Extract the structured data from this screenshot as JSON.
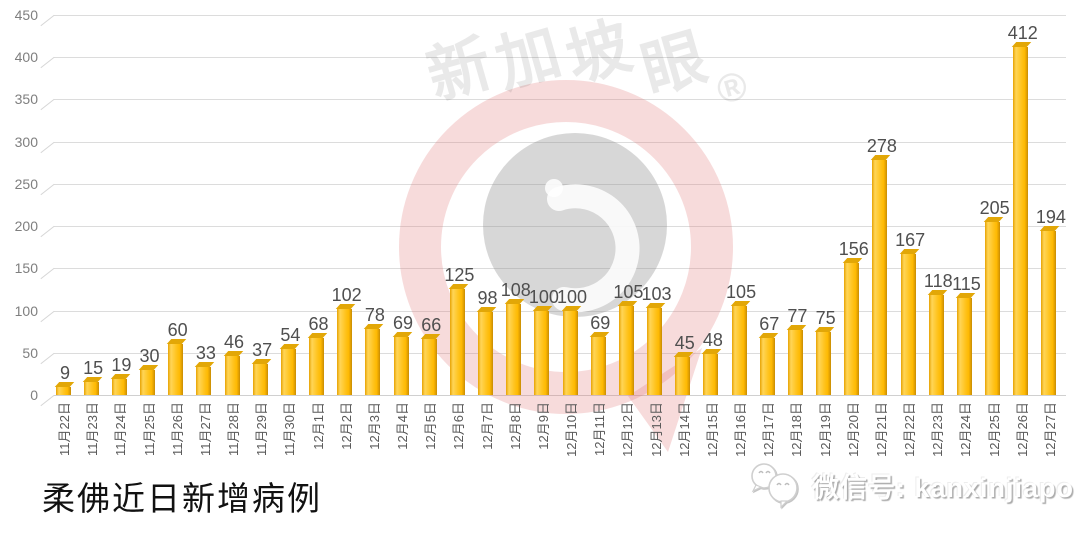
{
  "chart_data": {
    "type": "bar",
    "title": "柔佛近日新增病例",
    "categories": [
      "11月22日",
      "11月23日",
      "11月24日",
      "11月25日",
      "11月26日",
      "11月27日",
      "11月28日",
      "11月29日",
      "11月30日",
      "12月1日",
      "12月2日",
      "12月3日",
      "12月4日",
      "12月5日",
      "12月6日",
      "12月7日",
      "12月8日",
      "12月9日",
      "12月10日",
      "12月11日",
      "12月12日",
      "12月13日",
      "12月14日",
      "12月15日",
      "12月16日",
      "12月17日",
      "12月18日",
      "12月19日",
      "12月20日",
      "12月21日",
      "12月22日",
      "12月23日",
      "12月24日",
      "12月25日",
      "12月26日",
      "12月27日"
    ],
    "values": [
      9,
      15,
      19,
      30,
      60,
      33,
      46,
      37,
      54,
      68,
      102,
      78,
      69,
      66,
      125,
      98,
      108,
      100,
      100,
      69,
      105,
      103,
      45,
      48,
      105,
      67,
      77,
      75,
      156,
      278,
      167,
      118,
      115,
      205,
      412,
      194
    ],
    "xlabel": "",
    "ylabel": "",
    "ylim": [
      0,
      450
    ],
    "yticks": [
      0,
      50,
      100,
      150,
      200,
      250,
      300,
      350,
      400,
      450
    ],
    "grid": true,
    "legend": "none",
    "bar_color": "#FFC000",
    "bar_side_color": "#C68C05",
    "value_label_color": "#4F4F4F",
    "axis_label_color": "#7F7F7F"
  },
  "watermark": {
    "brand_text": "新加坡眼",
    "registered_mark": "®",
    "ring_color": "#E06E6E",
    "eye_color": "#8C8C8C"
  },
  "footer": {
    "wechat_label": "微信号: kanxinjiapo"
  }
}
